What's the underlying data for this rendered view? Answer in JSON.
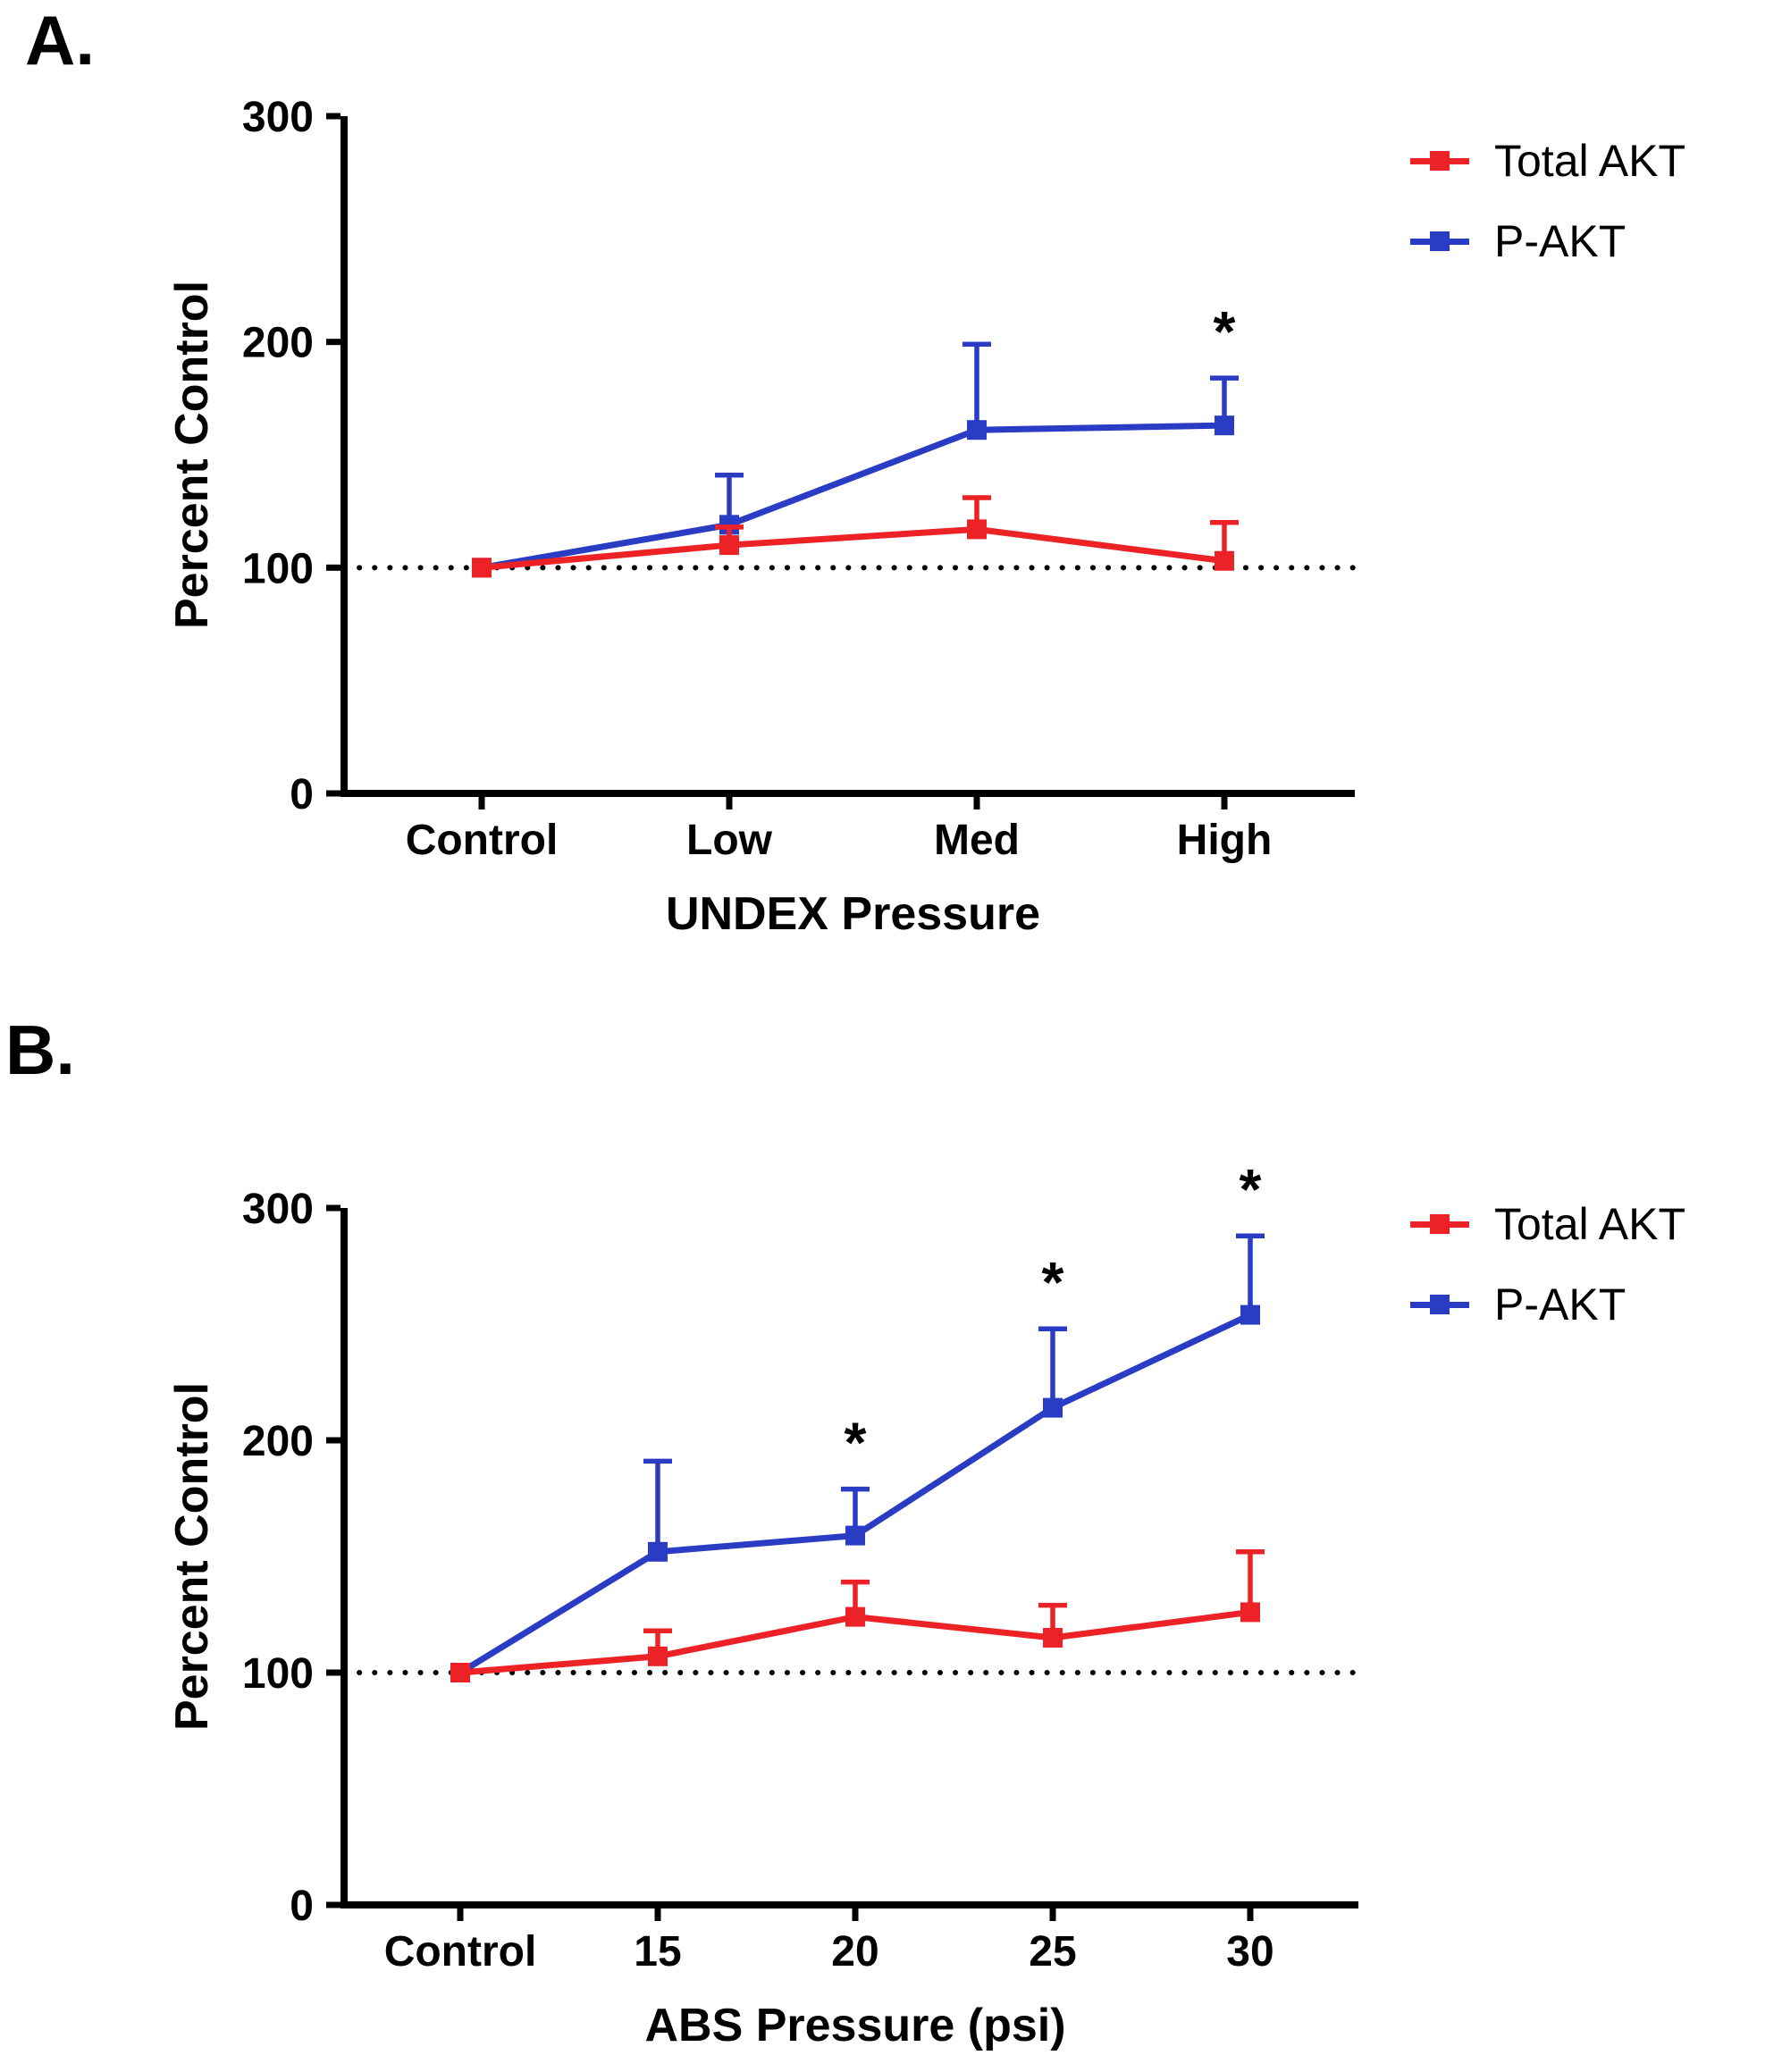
{
  "colors": {
    "total_akt": "#EC2227",
    "p_akt": "#2A3CC4",
    "axis": "#000000",
    "background": "#FFFFFF"
  },
  "chart_data": [
    {
      "type": "line",
      "panel_label": "A.",
      "title": "",
      "xlabel": "UNDEX Pressure",
      "ylabel": "Percent Control",
      "ylim": [
        0,
        300
      ],
      "yticks": [
        0,
        100,
        200,
        300
      ],
      "reference_line": 100,
      "grid": false,
      "legend_position": "right",
      "categories": [
        "Control",
        "Low",
        "Med",
        "High"
      ],
      "series": [
        {
          "name": "Total AKT",
          "color": "#EC2227",
          "values": [
            100,
            110,
            117,
            103
          ],
          "error_up": [
            0,
            8,
            14,
            17
          ]
        },
        {
          "name": "P-AKT",
          "color": "#2A3CC4",
          "values": [
            100,
            119,
            161,
            163
          ],
          "error_up": [
            0,
            22,
            38,
            21
          ]
        }
      ],
      "annotations": [
        {
          "series": "P-AKT",
          "category": "High",
          "text": "*"
        }
      ]
    },
    {
      "type": "line",
      "panel_label": "B.",
      "title": "",
      "xlabel": "ABS Pressure (psi)",
      "ylabel": "Percent Control",
      "ylim": [
        0,
        300
      ],
      "yticks": [
        0,
        100,
        200,
        300
      ],
      "reference_line": 100,
      "grid": false,
      "legend_position": "right",
      "categories": [
        "Control",
        "15",
        "20",
        "25",
        "30"
      ],
      "series": [
        {
          "name": "Total AKT",
          "color": "#EC2227",
          "values": [
            100,
            107,
            124,
            115,
            126
          ],
          "error_up": [
            0,
            11,
            15,
            14,
            26
          ]
        },
        {
          "name": "P-AKT",
          "color": "#2A3CC4",
          "values": [
            100,
            152,
            159,
            214,
            254
          ],
          "error_up": [
            0,
            39,
            20,
            34,
            34
          ]
        }
      ],
      "annotations": [
        {
          "series": "P-AKT",
          "category": "20",
          "text": "*"
        },
        {
          "series": "P-AKT",
          "category": "25",
          "text": "*"
        },
        {
          "series": "P-AKT",
          "category": "30",
          "text": "*"
        }
      ]
    }
  ]
}
